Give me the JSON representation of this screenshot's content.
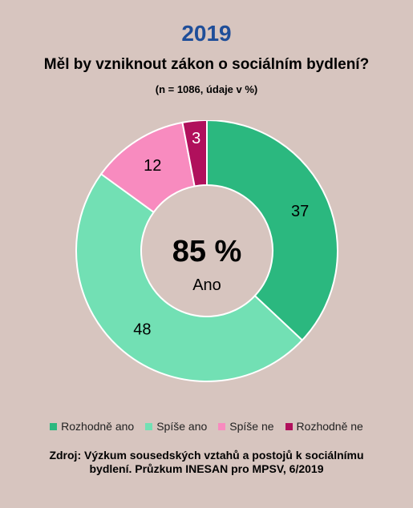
{
  "header": {
    "year": "2019",
    "question": "Měl by vzniknout zákon o sociálním bydlení?",
    "sample_note": "(n = 1086, údaje v %)"
  },
  "chart_data": {
    "type": "pie",
    "categories": [
      "Rozhodně ano",
      "Spíše ano",
      "Spíše ne",
      "Rozhodně ne"
    ],
    "values": [
      37,
      48,
      12,
      3
    ],
    "colors": [
      "#2bb87f",
      "#72e0b4",
      "#f88bbf",
      "#b0105c"
    ],
    "label_colors": [
      "#000000",
      "#000000",
      "#000000",
      "#ffffff"
    ],
    "center_value": "85 %",
    "center_label": "Ano",
    "legend_position": "bottom"
  },
  "footer": {
    "source_line1": "Zdroj: Výzkum sousedských vztahů a postojů k sociálnímu",
    "source_line2": "bydlení. Průzkum INESAN pro MPSV, 6/2019"
  }
}
